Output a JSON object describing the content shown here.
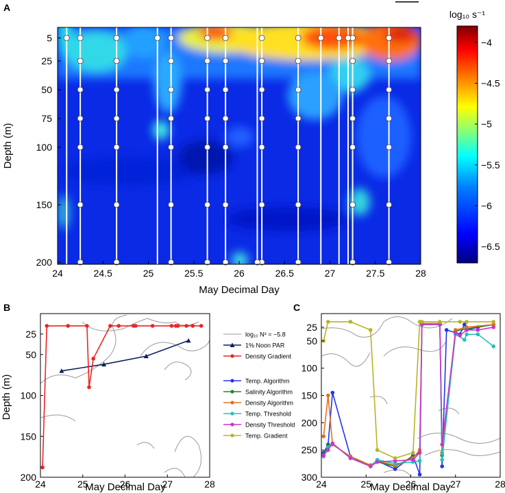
{
  "chart_data": [
    {
      "panel": "A",
      "type": "heatmap",
      "title": "",
      "xlabel": "May Decimal Day",
      "ylabel": "Depth (m)",
      "xlim": [
        24,
        28
      ],
      "ylim": [
        200,
        0
      ],
      "xticks": [
        24,
        24.5,
        25,
        25.5,
        26,
        26.5,
        27,
        27.5,
        28
      ],
      "yticks": [
        5,
        25,
        50,
        75,
        100,
        150,
        200
      ],
      "colorbar": {
        "label": "log₁₀ s⁻¹",
        "range": [
          -6.7,
          -3.8
        ],
        "ticks": [
          -4,
          -4.5,
          -5,
          -5.5,
          -6,
          -6.5
        ],
        "colors": [
          "#00007f",
          "#0000ff",
          "#007fff",
          "#00ffff",
          "#7fff7f",
          "#ffff00",
          "#ff7f00",
          "#ff0000",
          "#7f0000"
        ]
      },
      "profile_days": [
        24.1,
        24.25,
        24.65,
        25.1,
        25.25,
        25.65,
        25.85,
        26.2,
        26.25,
        26.65,
        26.9,
        27.1,
        27.2,
        27.25,
        27.65
      ],
      "sample_depths": [
        5,
        25,
        50,
        75,
        100,
        150,
        200
      ]
    },
    {
      "panel": "B",
      "type": "line",
      "xlabel": "May Decimal Day",
      "ylabel": "Depth (m)",
      "xlim": [
        24,
        28
      ],
      "ylim": [
        200,
        0
      ],
      "xticks": [
        24,
        25,
        26,
        27,
        28
      ],
      "yticks": [
        25,
        50,
        100,
        150,
        200
      ],
      "series": [
        {
          "name": "log₁₀ N² = −5.8",
          "color": "#999999",
          "style": "contour"
        },
        {
          "name": "1% Noon PAR",
          "color": "#0b1f5c",
          "marker": "triangle",
          "x": [
            24.5,
            25.5,
            26.5,
            27.5
          ],
          "y": [
            70,
            62,
            52,
            33
          ]
        },
        {
          "name": "Density Gradient",
          "color": "#ee2222",
          "marker": "circle",
          "x": [
            24.05,
            24.15,
            24.65,
            25.1,
            25.15,
            25.25,
            25.65,
            25.85,
            26.2,
            26.25,
            26.65,
            27.1,
            27.2,
            27.25,
            27.45,
            27.6,
            27.8
          ],
          "y": [
            188,
            15,
            15,
            15,
            90,
            55,
            15,
            15,
            15,
            15,
            15,
            15,
            15,
            15,
            15,
            15,
            15
          ]
        }
      ]
    },
    {
      "panel": "C",
      "type": "line",
      "xlabel": "May Decimal Day",
      "ylabel": "",
      "xlim": [
        24,
        28
      ],
      "ylim": [
        300,
        0
      ],
      "xticks": [
        24,
        25,
        26,
        27,
        28
      ],
      "yticks": [
        25,
        50,
        100,
        150,
        200,
        250,
        300
      ],
      "series": [
        {
          "name": "Temp. Algorithm",
          "color": "#2233ee",
          "x": [
            24.05,
            24.15,
            24.25,
            24.65,
            25.1,
            25.25,
            25.65,
            26.05,
            26.2,
            26.25,
            26.65,
            26.7,
            26.8,
            27.0,
            27.1,
            27.2,
            27.25,
            27.5,
            27.85
          ],
          "y": [
            255,
            240,
            145,
            262,
            280,
            270,
            285,
            260,
            295,
            18,
            18,
            280,
            30,
            35,
            38,
            20,
            30,
            25,
            20
          ]
        },
        {
          "name": "Salinity Algorithm",
          "color": "#1f8a1f",
          "x": [
            24.05,
            24.15,
            24.25,
            24.65,
            25.1,
            25.25,
            25.65,
            26.05,
            26.2,
            26.25,
            26.65,
            26.7,
            27.0,
            27.25,
            27.85
          ],
          "y": [
            258,
            242,
            240,
            262,
            278,
            272,
            280,
            262,
            255,
            20,
            20,
            260,
            32,
            28,
            20
          ]
        },
        {
          "name": "Density Algorithm",
          "color": "#e07020",
          "x": [
            24.05,
            24.15,
            24.25,
            24.65,
            25.1,
            25.25,
            25.65,
            26.05,
            26.2,
            26.25,
            26.65,
            26.7,
            27.0,
            27.25,
            27.85
          ],
          "y": [
            225,
            150,
            240,
            262,
            278,
            270,
            278,
            265,
            250,
            18,
            18,
            255,
            30,
            25,
            20
          ]
        },
        {
          "name": "Temp. Threshold",
          "color": "#22c0c0",
          "x": [
            24.05,
            24.15,
            24.25,
            24.65,
            25.1,
            25.25,
            25.65,
            26.05,
            26.2,
            26.25,
            26.65,
            26.7,
            27.0,
            27.2,
            27.25,
            27.5,
            27.85
          ],
          "y": [
            262,
            245,
            238,
            265,
            280,
            268,
            275,
            272,
            270,
            20,
            20,
            268,
            38,
            48,
            38,
            38,
            60
          ]
        },
        {
          "name": "Density Threshold",
          "color": "#cc33cc",
          "x": [
            24.05,
            24.15,
            24.25,
            24.65,
            25.1,
            25.25,
            25.65,
            26.05,
            26.2,
            26.25,
            26.65,
            26.7,
            27.0,
            27.1,
            27.25,
            27.5,
            27.85
          ],
          "y": [
            260,
            250,
            238,
            265,
            280,
            272,
            270,
            268,
            255,
            20,
            20,
            240,
            35,
            40,
            30,
            30,
            25
          ]
        },
        {
          "name": "Temp. Gradient",
          "color": "#b5b520",
          "x": [
            24.05,
            24.15,
            24.65,
            25.1,
            25.25,
            25.65,
            26.05,
            26.2,
            26.25,
            26.65,
            27.1,
            27.25,
            27.85
          ],
          "y": [
            50,
            15,
            15,
            30,
            250,
            265,
            255,
            15,
            15,
            15,
            15,
            15,
            15
          ]
        }
      ]
    }
  ],
  "scale_bar_label": ""
}
